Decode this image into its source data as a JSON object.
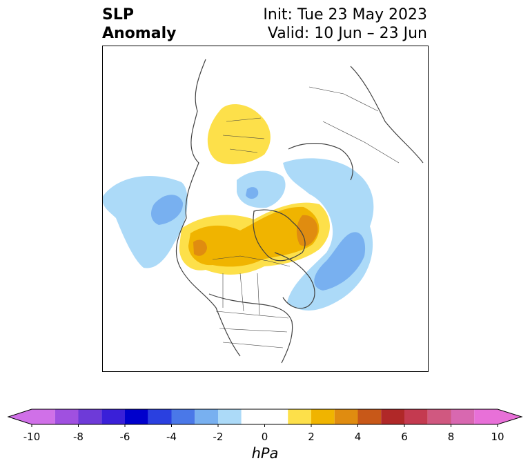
{
  "title": {
    "left_line1": "SLP",
    "left_line2": "Anomaly",
    "right_line1": "Init: Tue 23 May 2023",
    "right_line2": "Valid: 10 Jun – 23 Jun"
  },
  "colorbar": {
    "label": "hPa",
    "min": -10,
    "max": 10,
    "bounds": [
      -10,
      -9,
      -8,
      -7,
      -6,
      -5,
      -4,
      -3,
      -2,
      -1,
      1,
      2,
      3,
      4,
      5,
      6,
      7,
      8,
      9,
      10
    ],
    "colors": [
      "#d070e8",
      "#a050e0",
      "#6e3ad8",
      "#3a20d8",
      "#0000cc",
      "#2a40e0",
      "#4a78e8",
      "#78b0f0",
      "#acdaf8",
      "#ffffff",
      "#fde04a",
      "#f0b400",
      "#e08c10",
      "#c85818",
      "#b02828",
      "#c43a50",
      "#d05880",
      "#d868b0",
      "#e870d8"
    ],
    "extend_low_color": "#d070e8",
    "extend_high_color": "#e870d8",
    "ticks": [
      {
        "value": -10,
        "label": "-10"
      },
      {
        "value": -8,
        "label": "-8"
      },
      {
        "value": -6,
        "label": "-6"
      },
      {
        "value": -4,
        "label": "-4"
      },
      {
        "value": -2,
        "label": "-2"
      },
      {
        "value": 0,
        "label": "0"
      },
      {
        "value": 2,
        "label": "2"
      },
      {
        "value": 4,
        "label": "4"
      },
      {
        "value": 6,
        "label": "6"
      },
      {
        "value": 8,
        "label": "8"
      },
      {
        "value": 10,
        "label": "10"
      }
    ]
  },
  "map": {
    "region": "North America / Arctic (north polar stereographic)",
    "coastline_color": "#404040",
    "anomaly_fill_colors": {
      "neg1": "#acdaf8",
      "neg2": "#78b0f0",
      "pos1": "#fde04a",
      "pos2": "#f0b400",
      "pos3": "#e08c10"
    }
  }
}
